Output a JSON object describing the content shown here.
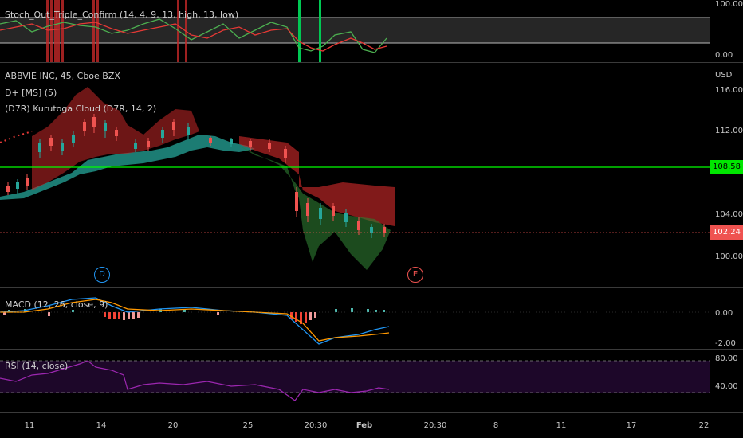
{
  "stoch": {
    "legend": "Stoch_Out_Triple_Confirm (14, 4, 9, 13, high, 13, low)",
    "axis": [
      "100.00",
      "0.00"
    ]
  },
  "main": {
    "symbol": "ABBVIE INC, 45, Cboe BZX",
    "ind1": "D+ [MS] (5)",
    "ind2": "(D7R) Kurutoga Cloud (D7R, 14, 2)",
    "currency": "USD",
    "axis": [
      "116.00",
      "112.00",
      "104.00",
      "100.00"
    ],
    "hline_label": "108.58",
    "last_price": "102.24",
    "event_d": "D",
    "event_e": "E"
  },
  "macd": {
    "legend": "MACD (12, 26, close, 9)",
    "axis": [
      "0.00",
      "-2.00"
    ]
  },
  "rsi": {
    "legend": "RSI (14, close)",
    "axis": [
      "80.00",
      "40.00"
    ]
  },
  "xaxis": [
    "11",
    "14",
    "20",
    "25",
    "20:30",
    "Feb",
    "20:30",
    "8",
    "11",
    "17",
    "22"
  ],
  "colors": {
    "green": "#26a69a",
    "red": "#ef5350",
    "bright_green": "#00ff00",
    "rsi": "#9c27b0",
    "price_tag": "#ef5350",
    "hline_tag": "#00e600"
  }
}
